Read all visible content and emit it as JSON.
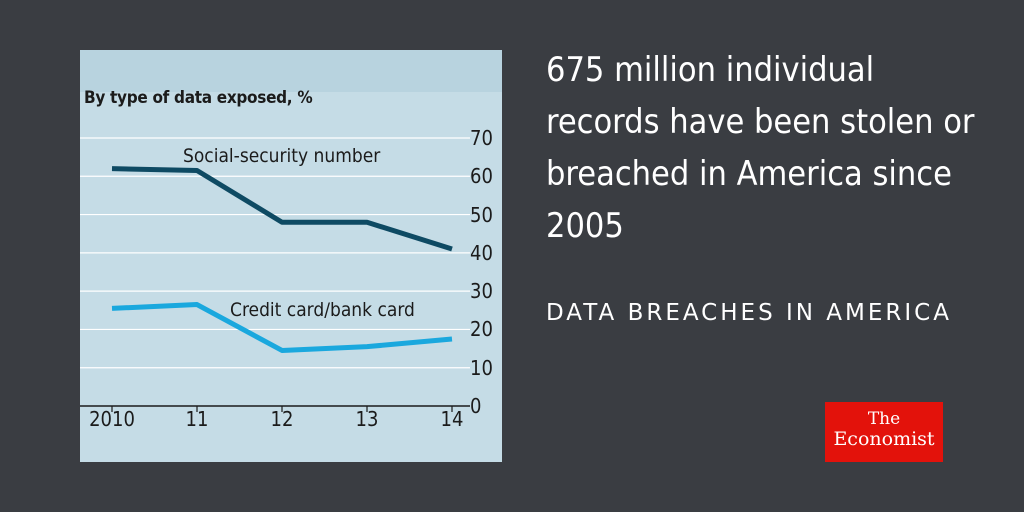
{
  "headline": "675 million individual records have been stolen or breached in America since 2005",
  "kicker": "DATA BREACHES IN AMERICA",
  "logo": {
    "line1": "The",
    "line2": "Economist",
    "color": "#e3120b"
  },
  "colors": {
    "background": "#3a3d42",
    "panel": "#c5dce6",
    "social_security": "#0e4a63",
    "credit_card": "#1aa8de"
  },
  "chart_data": {
    "type": "line",
    "subtitle": "By type of data exposed, %",
    "x": [
      "2010",
      "11",
      "12",
      "13",
      "14"
    ],
    "y_ticks": [
      "70",
      "60",
      "50",
      "40",
      "30",
      "20",
      "10",
      "0"
    ],
    "ylim": [
      0,
      70
    ],
    "y_axis_side": "right",
    "grid": true,
    "series": [
      {
        "name": "Social-security number",
        "values": [
          62,
          61.5,
          48,
          48,
          41
        ]
      },
      {
        "name": "Credit card/bank card",
        "values": [
          25.5,
          26.5,
          14.5,
          15.5,
          17.5
        ]
      }
    ]
  }
}
